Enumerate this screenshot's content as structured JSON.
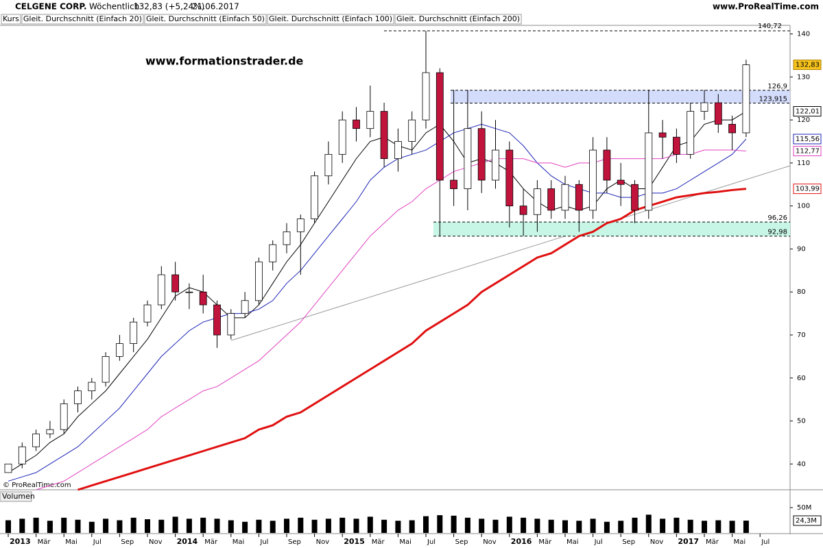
{
  "header": {
    "name": "CELGENE CORP.",
    "interval": "Wöchentlich",
    "change": "132,83 (+5,24%)",
    "date": "21.06.2017",
    "site": "www.ProRealTime.com"
  },
  "watermark": "www.formationstrader.de",
  "copyright": "© ProRealTime.com",
  "chart_data": {
    "type": "candlestick",
    "categories": [
      "2013",
      null,
      "Mär",
      null,
      "Mai",
      null,
      "Jul",
      null,
      "Sep",
      null,
      "Nov",
      null,
      "2014",
      null,
      "Mär",
      null,
      "Mai",
      null,
      "Jul",
      null,
      "Sep",
      null,
      "Nov",
      null,
      "2015",
      null,
      "Mär",
      null,
      "Mai",
      null,
      "Jul",
      null,
      "Sep",
      null,
      "Nov",
      null,
      "2016",
      null,
      "Mär",
      null,
      "Mai",
      null,
      "Jul",
      null,
      "Sep",
      null,
      "Nov",
      null,
      "2017",
      null,
      "Mär",
      null,
      "Mai",
      null,
      "Jul"
    ],
    "price_label": "Kurs",
    "ohlc": {
      "open": [
        38,
        40,
        44,
        47,
        48,
        54,
        57,
        59,
        65,
        68,
        73,
        77,
        84,
        80,
        80,
        77,
        70,
        75,
        78,
        87,
        91,
        94,
        97,
        107,
        112,
        120,
        118,
        122,
        111,
        115,
        120,
        131,
        106,
        104,
        118,
        106,
        113,
        100,
        98,
        104,
        99,
        105,
        99,
        113,
        106,
        105,
        99,
        117,
        116,
        112,
        122,
        124,
        119,
        117,
        null
      ],
      "high": [
        40,
        45,
        48,
        50,
        55,
        58,
        60,
        66,
        70,
        74,
        78,
        86,
        87,
        82,
        84,
        78,
        76,
        80,
        88,
        92,
        96,
        98,
        108,
        115,
        122,
        123,
        128,
        124,
        118,
        122,
        140.72,
        132,
        127,
        127,
        122,
        120,
        115,
        104,
        106,
        106,
        107,
        106,
        116,
        116,
        110,
        106,
        127,
        120,
        118,
        124,
        127,
        126,
        121,
        134,
        null
      ],
      "low": [
        38,
        39,
        43,
        46,
        47,
        52,
        55,
        58,
        64,
        66,
        72,
        76,
        78,
        76,
        75,
        67,
        69,
        74,
        77,
        85,
        89,
        84,
        96,
        105,
        110,
        115,
        116,
        109,
        108,
        112,
        118,
        93,
        100,
        99,
        103,
        104,
        95,
        93,
        94,
        97,
        97,
        94,
        97,
        103,
        100,
        96,
        97,
        111,
        110,
        111,
        120,
        117,
        113,
        116,
        null
      ],
      "close": [
        40,
        44,
        47,
        48,
        54,
        57,
        59,
        65,
        68,
        73,
        77,
        84,
        80,
        80,
        77,
        70,
        75,
        78,
        87,
        91,
        94,
        97,
        107,
        112,
        120,
        118,
        122,
        111,
        115,
        120,
        131,
        106,
        104,
        118,
        106,
        113,
        100,
        98,
        104,
        99,
        105,
        99,
        113,
        106,
        105,
        99,
        117,
        116,
        112,
        122,
        124,
        119,
        117,
        132.83,
        null
      ],
      "up_color": "#ffffff",
      "down_color": "#c0143c",
      "last_label": "132,83"
    },
    "series": [
      {
        "name": "Gleit. Durchschnitt (Einfach 20)",
        "color": "#000000",
        "last_label": "122,01",
        "values": [
          38,
          40,
          42,
          45,
          47,
          51,
          54,
          57,
          61,
          65,
          69,
          74,
          79,
          81,
          80,
          77,
          74,
          74,
          77,
          82,
          87,
          91,
          96,
          101,
          106,
          111,
          115,
          116,
          114,
          113,
          117,
          119,
          115,
          110,
          111,
          110,
          108,
          104,
          101,
          99,
          100,
          99,
          100,
          104,
          106,
          104,
          104,
          109,
          114,
          115,
          119,
          120,
          120,
          122.01,
          null
        ]
      },
      {
        "name": "Gleit. Durchschnitt (Einfach 50)",
        "color": "#1a22b4",
        "last_label": "115,56",
        "values": [
          36,
          37,
          38,
          40,
          42,
          44,
          47,
          50,
          53,
          57,
          61,
          65,
          68,
          71,
          73,
          74,
          75,
          75,
          76,
          78,
          82,
          85,
          89,
          93,
          97,
          101,
          106,
          109,
          111,
          112,
          113,
          115,
          117,
          118,
          119,
          118,
          117,
          114,
          110,
          107,
          105,
          104,
          103,
          103,
          102,
          102,
          103,
          103,
          104,
          106,
          108,
          110,
          112,
          115.56,
          null
        ]
      },
      {
        "name": "Gleit. Durchschnitt (Einfach 100)",
        "color": "#e040c0",
        "last_label": "112,77",
        "values": [
          null,
          null,
          34,
          35,
          36,
          38,
          40,
          42,
          44,
          46,
          48,
          51,
          53,
          55,
          57,
          58,
          60,
          62,
          64,
          67,
          70,
          73,
          77,
          81,
          85,
          89,
          93,
          96,
          99,
          101,
          104,
          106,
          108,
          109,
          110,
          111,
          111,
          111,
          110,
          110,
          109,
          110,
          110,
          111,
          111,
          111,
          111,
          111,
          112,
          112,
          113,
          113,
          113,
          112.77,
          null
        ]
      },
      {
        "name": "Gleit. Durchschnitt (Einfach 200)",
        "color": "#e01010",
        "last_label": "103,99",
        "values": [
          null,
          null,
          null,
          null,
          null,
          34,
          35,
          36,
          37,
          38,
          39,
          40,
          41,
          42,
          43,
          44,
          45,
          46,
          48,
          49,
          51,
          52,
          54,
          56,
          58,
          60,
          62,
          64,
          66,
          68,
          71,
          73,
          75,
          77,
          80,
          82,
          84,
          86,
          88,
          89,
          91,
          93,
          94,
          96,
          97,
          99,
          100,
          101,
          102,
          102.5,
          103,
          103.3,
          103.7,
          103.99,
          null
        ]
      }
    ],
    "ylim": [
      34,
      142
    ],
    "yticks": [
      40,
      50,
      60,
      70,
      80,
      90,
      100,
      110,
      120,
      130,
      140
    ],
    "levels": [
      {
        "value": 140.72,
        "label": "140,72"
      }
    ],
    "zones": [
      {
        "high": {
          "value": 126.9,
          "label": "126,9"
        },
        "low": {
          "value": 123.915,
          "label": "123,915"
        },
        "color": "#d4dcfc"
      },
      {
        "high": {
          "value": 96.26,
          "label": "96,26"
        },
        "low": {
          "value": 92.98,
          "label": "92,98"
        },
        "color": "#c8f6e6"
      }
    ],
    "volume": {
      "name": "Volumen",
      "color": "#000000",
      "last_label": "24,3M",
      "values": [
        25,
        28,
        30,
        24,
        30,
        26,
        22,
        28,
        25,
        30,
        27,
        26,
        32,
        28,
        30,
        28,
        25,
        22,
        26,
        24,
        28,
        30,
        26,
        28,
        30,
        28,
        32,
        26,
        24,
        25,
        33,
        35,
        34,
        30,
        28,
        26,
        32,
        30,
        28,
        26,
        25,
        24,
        28,
        22,
        24,
        30,
        36,
        28,
        30,
        26,
        24,
        25,
        24,
        24.3,
        null
      ],
      "ylim": [
        0,
        60
      ],
      "yticks": [
        {
          "value": 50,
          "label": "50M"
        }
      ]
    }
  }
}
